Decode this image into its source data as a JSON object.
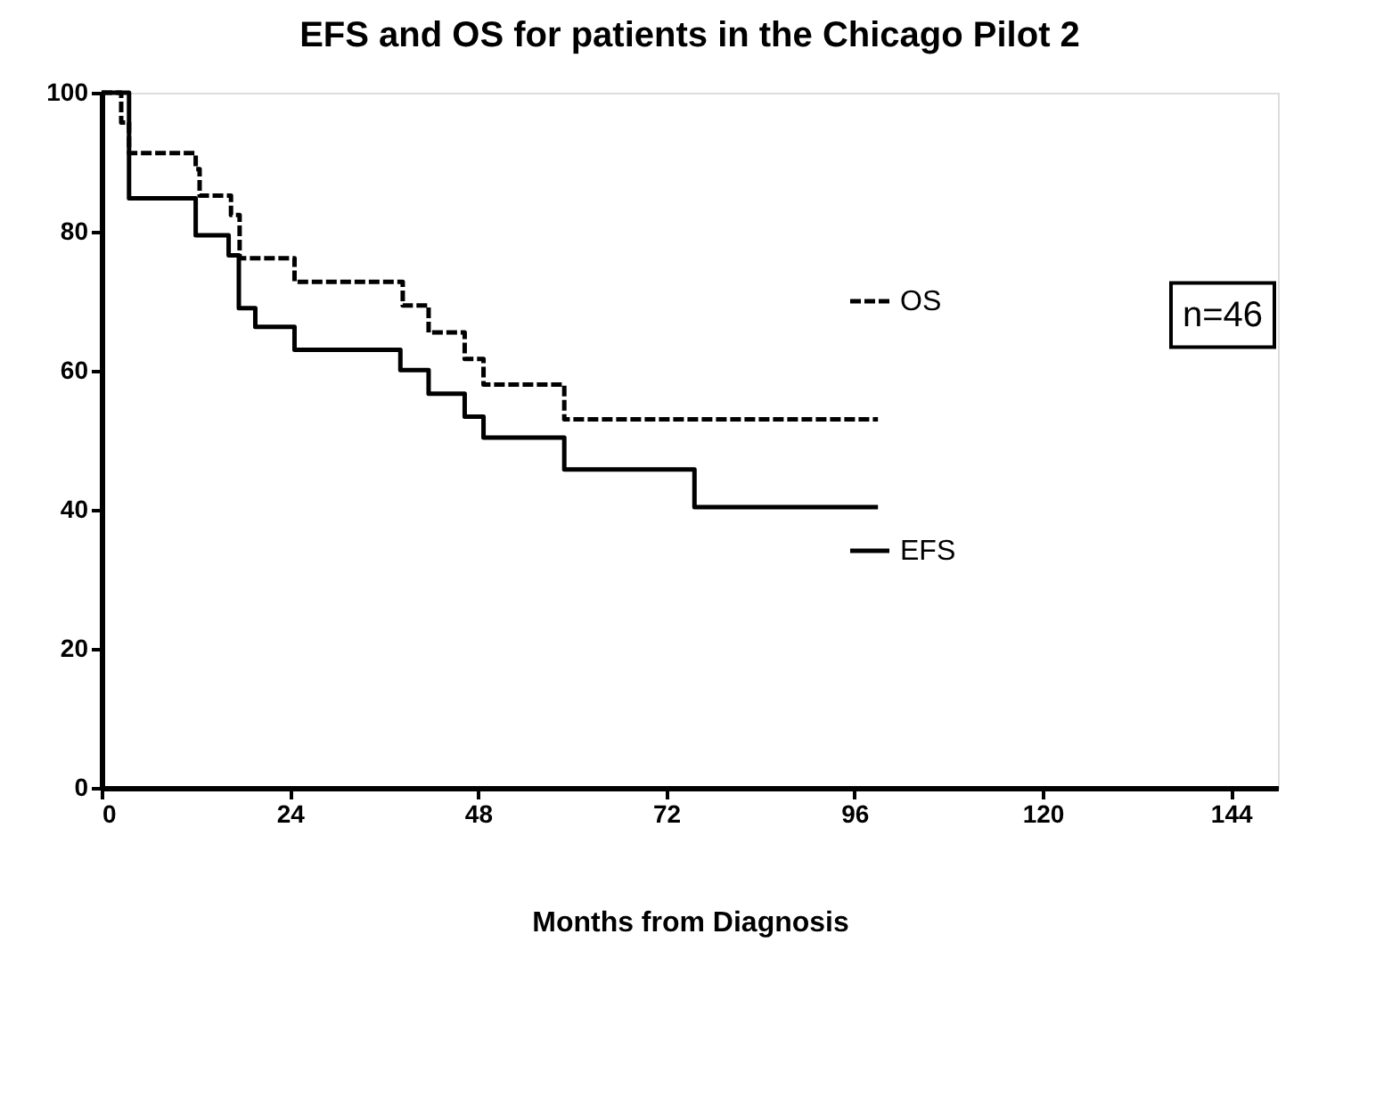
{
  "chart_data": {
    "type": "step",
    "title": "EFS and OS for patients in the Chicago Pilot 2",
    "xlabel": "Months from Diagnosis",
    "xlim": [
      0,
      150
    ],
    "xticks": [
      0,
      24,
      48,
      72,
      96,
      120,
      144
    ],
    "ylim": [
      0,
      100
    ],
    "yticks": [
      0,
      20,
      40,
      60,
      80,
      100
    ],
    "grid": false,
    "legend": "right",
    "annotations": [
      "n=46"
    ],
    "series": [
      {
        "name": "OS",
        "color": "#000000",
        "line_style": "dashed",
        "x": [
          0,
          2.5,
          3.5,
          12,
          12.5,
          16.5,
          17.6,
          24.6,
          38.4,
          41.7,
          46.3,
          48.7,
          59,
          99
        ],
        "values": [
          100,
          95.7,
          91.3,
          89,
          85.2,
          82.4,
          76.2,
          72.8,
          69.4,
          65.5,
          61.7,
          58,
          53,
          53
        ]
      },
      {
        "name": "EFS",
        "color": "#000000",
        "line_style": "solid",
        "x": [
          0,
          3.5,
          12,
          16.2,
          17.5,
          19.6,
          24.6,
          38.1,
          41.7,
          46.3,
          48.7,
          59,
          75.6,
          99
        ],
        "values": [
          100,
          84.8,
          79.5,
          76.6,
          69,
          66.3,
          63,
          60.1,
          56.7,
          53.4,
          50.4,
          45.8,
          40.4,
          40.4
        ]
      }
    ]
  }
}
